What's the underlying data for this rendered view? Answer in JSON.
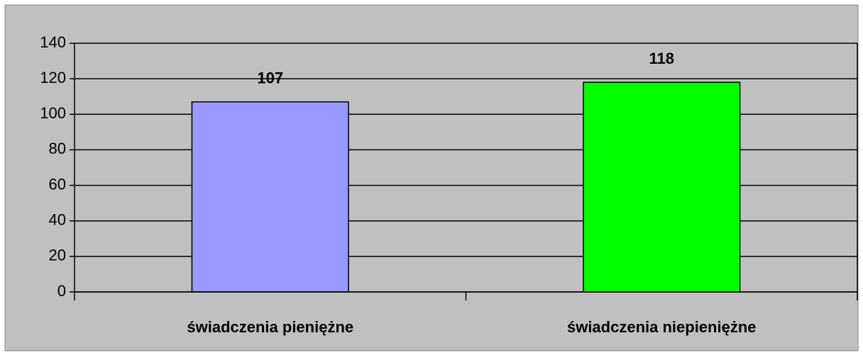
{
  "chart_data": {
    "type": "bar",
    "categories": [
      "świadczenia pieniężne",
      "świadczenia niepieniężne"
    ],
    "values": [
      107,
      118
    ],
    "colors": [
      "#9999ff",
      "#00ff00"
    ],
    "ylim": [
      0,
      140
    ],
    "yticks": [
      0,
      20,
      40,
      60,
      80,
      100,
      120,
      140
    ],
    "grid": true
  }
}
